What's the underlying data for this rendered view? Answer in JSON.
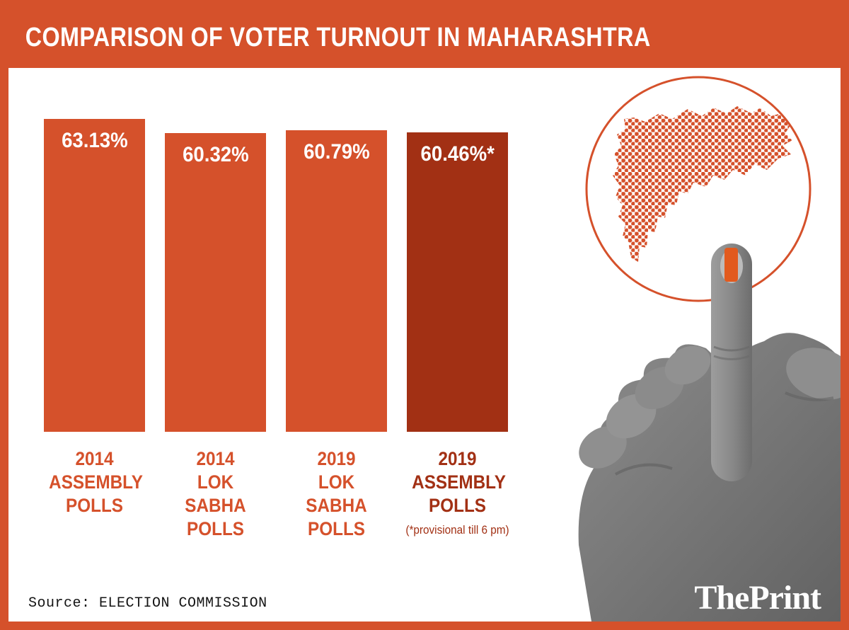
{
  "title_bar": {
    "title": "COMPARISON OF VOTER TURNOUT IN MAHARASHTRA"
  },
  "colors": {
    "accent": "#D5512B",
    "dark_red": "#A23014",
    "ink_mark": "#E25A1E",
    "title_text": "#FFFFFF",
    "background": "#FFFFFF"
  },
  "chart_data": {
    "type": "bar",
    "title": "COMPARISON OF VOTER TURNOUT IN MAHARASHTRA",
    "categories": [
      "2014\nASSEMBLY\nPOLLS",
      "2014\nLOK SABHA\nPOLLS",
      "2019\nLOK SABHA\nPOLLS",
      "2019\nASSEMBLY\nPOLLS"
    ],
    "values": [
      63.13,
      60.32,
      60.79,
      60.46
    ],
    "value_labels": [
      "63.13%",
      "60.32%",
      "60.79%",
      "60.46%*"
    ],
    "bar_colors": [
      "#D5512B",
      "#D5512B",
      "#D5512B",
      "#A23014"
    ],
    "label_colors": [
      "#D5512B",
      "#D5512B",
      "#D5512B",
      "#A23014"
    ],
    "footnote": "(*provisional till 6 pm)",
    "xlabel": "",
    "ylabel": "",
    "ylim": [
      0,
      63.13
    ],
    "grid": false,
    "legend": false
  },
  "graphic": {
    "map_icon": "maharashtra-dot-map",
    "hand_icon": "pointing-finger-hand",
    "ink_icon": "voter-ink-mark"
  },
  "source": {
    "label": "Source:",
    "value": "ELECTION COMMISSION"
  },
  "logo": {
    "text": "ThePrint"
  }
}
